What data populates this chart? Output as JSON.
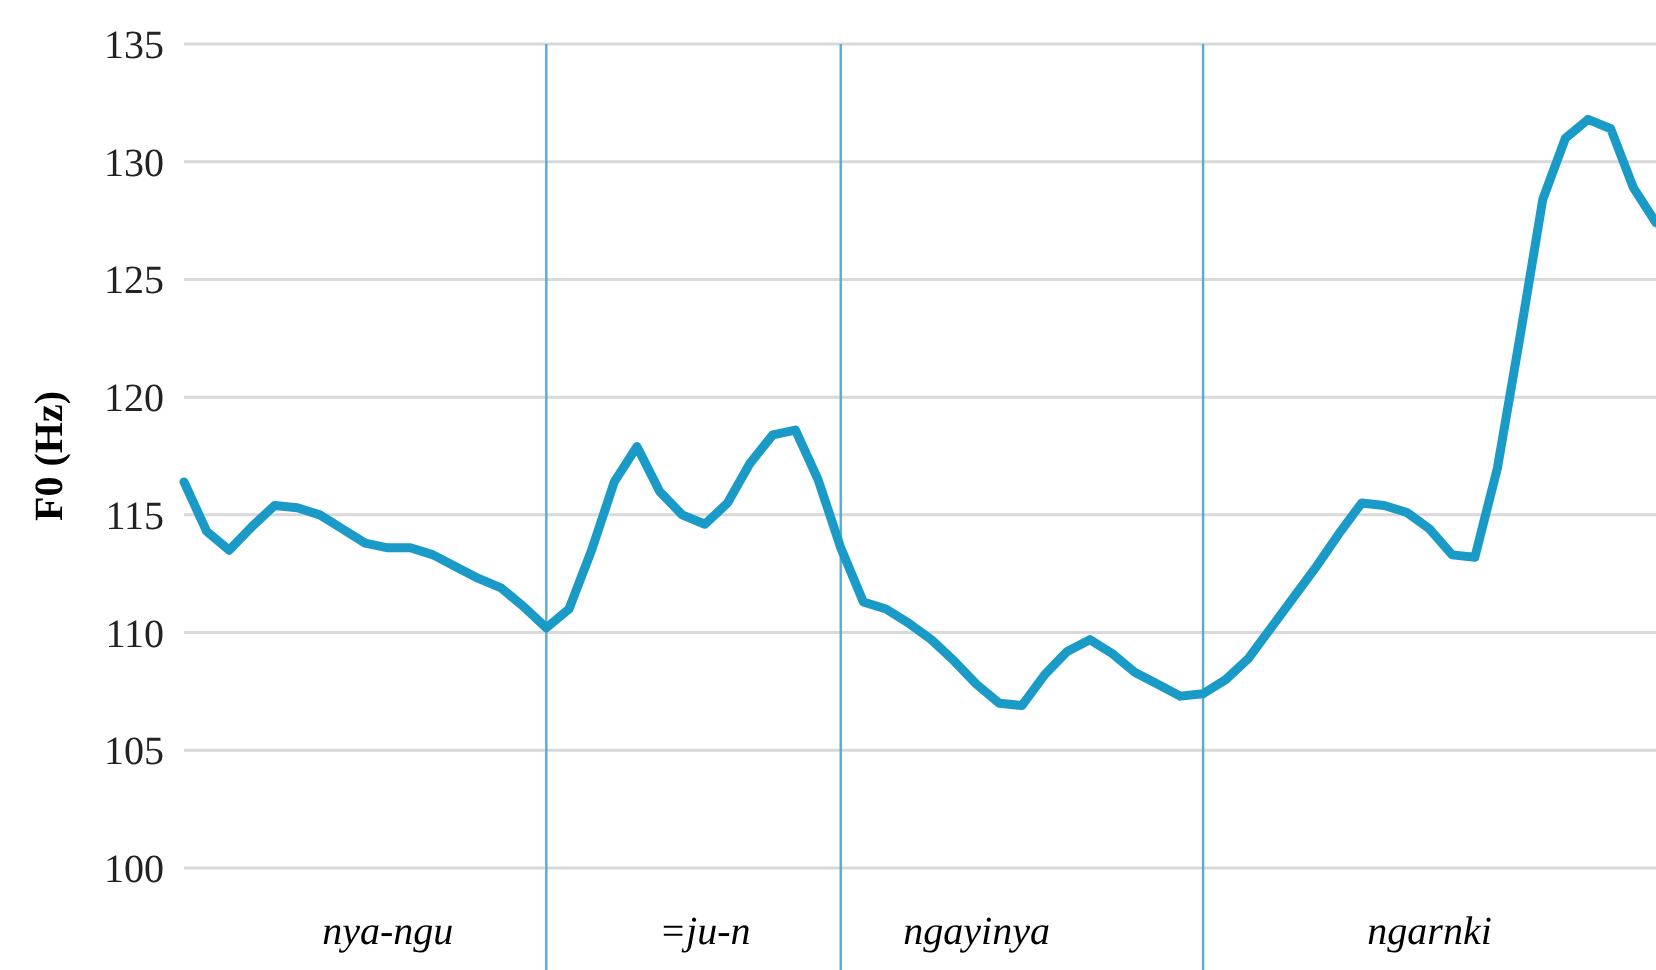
{
  "chart_data": {
    "type": "line",
    "ylabel": "F0 (Hz)",
    "categories": [
      null,
      null,
      null,
      null,
      null,
      null,
      null,
      null,
      null,
      "nya-ngu",
      null,
      null,
      null,
      null,
      null,
      null,
      null,
      null,
      null,
      null,
      null,
      null,
      null,
      "=ju-n",
      null,
      null,
      null,
      null,
      null,
      null,
      null,
      null,
      null,
      null,
      null,
      "ngayinya",
      null,
      null,
      null,
      null,
      null,
      null,
      null,
      null,
      null,
      null,
      null,
      null,
      null,
      null,
      null,
      null,
      null,
      null,
      null,
      "ngarnki",
      null,
      null,
      null,
      null,
      null,
      null,
      null,
      null,
      null,
      null
    ],
    "series": [
      {
        "color": "#1a9bc7",
        "values": [
          116.4,
          114.3,
          113.5,
          114.5,
          115.4,
          115.3,
          115.0,
          114.4,
          113.8,
          113.6,
          113.6,
          113.3,
          112.8,
          112.3,
          111.9,
          111.1,
          110.2,
          111.0,
          113.5,
          116.4,
          117.9,
          116.0,
          115.0,
          114.6,
          115.5,
          117.2,
          118.4,
          118.6,
          116.5,
          113.6,
          111.3,
          111.0,
          110.4,
          109.7,
          108.8,
          107.8,
          107.0,
          106.9,
          108.2,
          109.2,
          109.7,
          109.1,
          108.3,
          107.8,
          107.3,
          107.4,
          108.0,
          108.9,
          110.2,
          111.5,
          112.8,
          114.2,
          115.5,
          115.4,
          115.1,
          114.4,
          113.3,
          113.2,
          117.0,
          122.6,
          128.4,
          131.0,
          131.8,
          131.4,
          128.9,
          127.4
        ]
      }
    ],
    "ylim": [
      100,
      135
    ],
    "yticks": [
      100,
      105,
      110,
      115,
      120,
      125,
      130,
      135
    ],
    "grid": "y",
    "line_style": "solid"
  }
}
